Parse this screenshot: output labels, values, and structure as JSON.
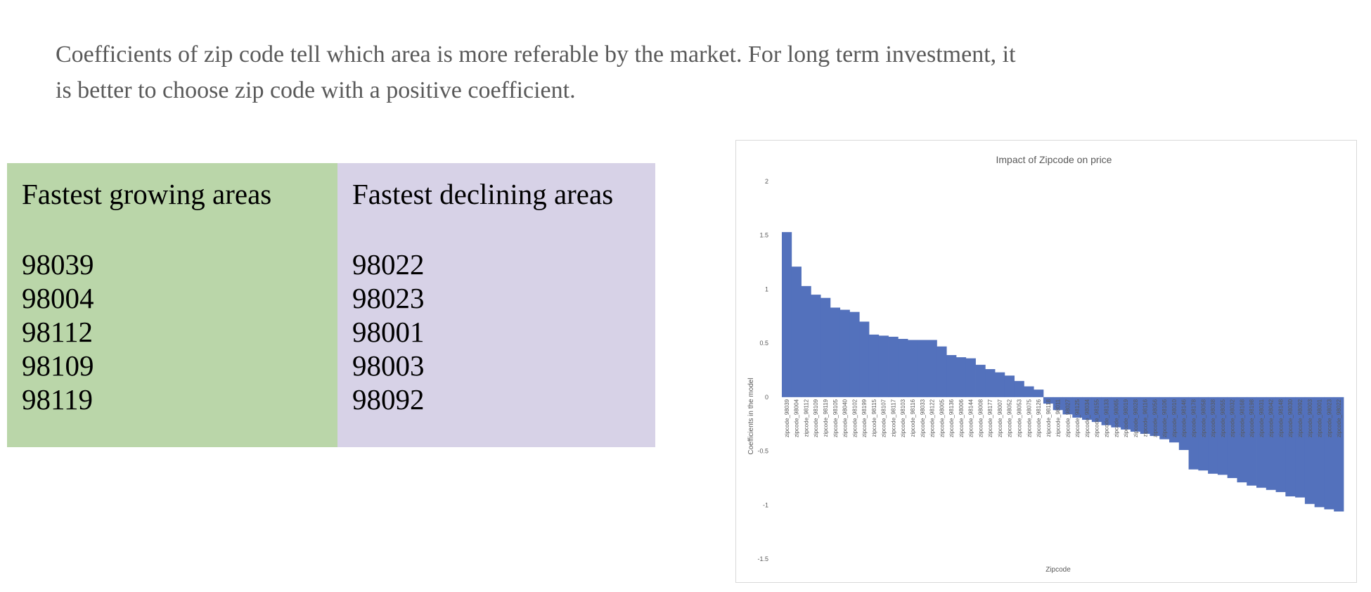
{
  "intro": {
    "line1": "Coefficients of zip code tell which area is more referable by the market. For long term investment, it",
    "line2": "is better to choose zip code with a positive coefficient."
  },
  "growing": {
    "title": "Fastest growing areas",
    "zipcodes": [
      "98039",
      "98004",
      "98112",
      "98109",
      "98119"
    ],
    "background": "#bad6a9"
  },
  "declining": {
    "title": "Fastest declining areas",
    "zipcodes": [
      "98022",
      "98023",
      "98001",
      "98003",
      "98092"
    ],
    "background": "#d7d2e7"
  },
  "chart_data": {
    "type": "bar",
    "title": "Impact of Zipcode on price",
    "xlabel": "Zipcode",
    "ylabel": "Coefficients in the model",
    "ylim": [
      -1.5,
      2
    ],
    "yticks": [
      2,
      1.5,
      1,
      0.5,
      0,
      -0.5,
      -1,
      -1.5
    ],
    "bar_color": "#5371bc",
    "grid": false,
    "legend": "none",
    "categories": [
      "zipcode_98039",
      "zipcode_98004",
      "zipcode_98112",
      "zipcode_98109",
      "zipcode_98119",
      "zipcode_98105",
      "zipcode_98040",
      "zipcode_98102",
      "zipcode_98199",
      "zipcode_98115",
      "zipcode_98107",
      "zipcode_98117",
      "zipcode_98103",
      "zipcode_98116",
      "zipcode_98033",
      "zipcode_98122",
      "zipcode_98005",
      "zipcode_98136",
      "zipcode_98006",
      "zipcode_98144",
      "zipcode_98008",
      "zipcode_98177",
      "zipcode_98007",
      "zipcode_98052",
      "zipcode_98053",
      "zipcode_98075",
      "zipcode_98126",
      "zipcode_98118",
      "zipcode_98011",
      "zipcode_98027",
      "zipcode_98125",
      "zipcode_98034",
      "zipcode_98155",
      "zipcode_98133",
      "zipcode_98065",
      "zipcode_98019",
      "zipcode_98028",
      "zipcode_98116",
      "zipcode_98056",
      "zipcode_98106",
      "zipcode_98010",
      "zipcode_98146",
      "zipcode_98178",
      "zipcode_98058",
      "zipcode_98038",
      "zipcode_98055",
      "zipcode_98032",
      "zipcode_98168",
      "zipcode_98198",
      "zipcode_98031",
      "zipcode_98042",
      "zipcode_98148",
      "zipcode_98030",
      "zipcode_98092",
      "zipcode_98003",
      "zipcode_98001",
      "zipcode_98023",
      "zipcode_98022"
    ],
    "values": [
      1.53,
      1.21,
      1.03,
      0.95,
      0.92,
      0.83,
      0.81,
      0.79,
      0.7,
      0.58,
      0.57,
      0.56,
      0.54,
      0.53,
      0.53,
      0.53,
      0.47,
      0.39,
      0.37,
      0.36,
      0.3,
      0.26,
      0.23,
      0.2,
      0.15,
      0.1,
      0.07,
      -0.06,
      -0.12,
      -0.16,
      -0.19,
      -0.21,
      -0.23,
      -0.26,
      -0.28,
      -0.3,
      -0.32,
      -0.34,
      -0.36,
      -0.39,
      -0.42,
      -0.49,
      -0.67,
      -0.68,
      -0.71,
      -0.72,
      -0.75,
      -0.79,
      -0.82,
      -0.84,
      -0.86,
      -0.88,
      -0.92,
      -0.93,
      -0.99,
      -1.02,
      -1.04,
      -1.06
    ]
  }
}
